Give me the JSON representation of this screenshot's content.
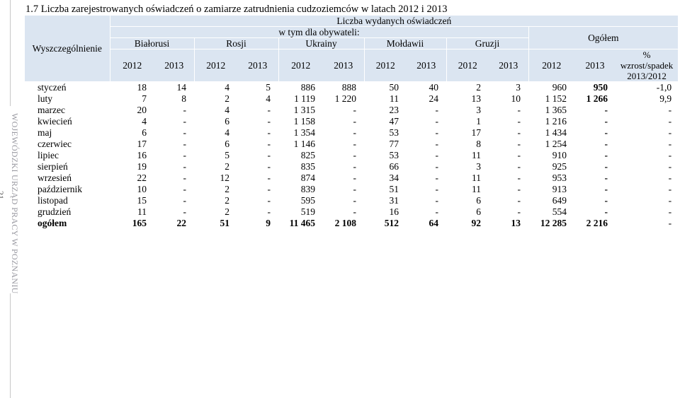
{
  "doc_title": "1.7 Liczba zarejestrowanych oświadczeń o zamiarze zatrudnienia cudzoziemców w latach 2012 i 2013",
  "sidebar": {
    "org_name": "WOJEWÓDZKI URZĄD PRACY W POZNANIU",
    "page_number": "21"
  },
  "table": {
    "stub_header": "Wyszczególnienie",
    "group_header": "Liczba wydanych oświadczeń",
    "subgroup_header": "w tym dla obywateli:",
    "countries": [
      "Białorusi",
      "Rosji",
      "Ukrainy",
      "Mołdawii",
      "Gruzji"
    ],
    "total_header": "Ogółem",
    "years": [
      "2012",
      "2013",
      "2012",
      "2013",
      "2012",
      "2013",
      "2012",
      "2013",
      "2012",
      "2013",
      "2012",
      "2013"
    ],
    "pct_header": [
      "%",
      "wzrost/spadek",
      "2013/2012"
    ],
    "rows": [
      {
        "label": "styczeń",
        "values": [
          "18",
          "14",
          "4",
          "5",
          "886",
          "888",
          "50",
          "40",
          "2",
          "3",
          "960",
          "950",
          "-1,0"
        ]
      },
      {
        "label": "luty",
        "values": [
          "7",
          "8",
          "2",
          "4",
          "1 119",
          "1 220",
          "11",
          "24",
          "13",
          "10",
          "1 152",
          "1 266",
          "9,9"
        ]
      },
      {
        "label": "marzec",
        "values": [
          "20",
          "-",
          "4",
          "-",
          "1 315",
          "-",
          "23",
          "-",
          "3",
          "-",
          "1 365",
          "-",
          "-"
        ]
      },
      {
        "label": "kwiecień",
        "values": [
          "4",
          "-",
          "6",
          "-",
          "1 158",
          "-",
          "47",
          "-",
          "1",
          "-",
          "1 216",
          "-",
          "-"
        ]
      },
      {
        "label": "maj",
        "values": [
          "6",
          "-",
          "4",
          "-",
          "1 354",
          "-",
          "53",
          "-",
          "17",
          "-",
          "1 434",
          "-",
          "-"
        ]
      },
      {
        "label": "czerwiec",
        "values": [
          "17",
          "-",
          "6",
          "-",
          "1 146",
          "-",
          "77",
          "-",
          "8",
          "-",
          "1 254",
          "-",
          "-"
        ]
      },
      {
        "label": "lipiec",
        "values": [
          "16",
          "-",
          "5",
          "-",
          "825",
          "-",
          "53",
          "-",
          "11",
          "-",
          "910",
          "-",
          "-"
        ]
      },
      {
        "label": "sierpień",
        "values": [
          "19",
          "-",
          "2",
          "-",
          "835",
          "-",
          "66",
          "-",
          "3",
          "-",
          "925",
          "-",
          "-"
        ]
      },
      {
        "label": "wrzesień",
        "values": [
          "22",
          "-",
          "12",
          "-",
          "874",
          "-",
          "34",
          "-",
          "11",
          "-",
          "953",
          "-",
          "-"
        ]
      },
      {
        "label": "październik",
        "values": [
          "10",
          "-",
          "2",
          "-",
          "839",
          "-",
          "51",
          "-",
          "11",
          "-",
          "913",
          "-",
          "-"
        ]
      },
      {
        "label": "listopad",
        "values": [
          "15",
          "-",
          "2",
          "-",
          "595",
          "-",
          "31",
          "-",
          "6",
          "-",
          "649",
          "-",
          "-"
        ]
      },
      {
        "label": "grudzień",
        "values": [
          "11",
          "-",
          "2",
          "-",
          "519",
          "-",
          "16",
          "-",
          "6",
          "-",
          "554",
          "-",
          "-"
        ]
      }
    ],
    "total_row": {
      "label": "ogółem",
      "values": [
        "165",
        "22",
        "51",
        "9",
        "11 465",
        "2 108",
        "512",
        "64",
        "92",
        "13",
        "12 285",
        "2 216",
        "-"
      ]
    }
  }
}
